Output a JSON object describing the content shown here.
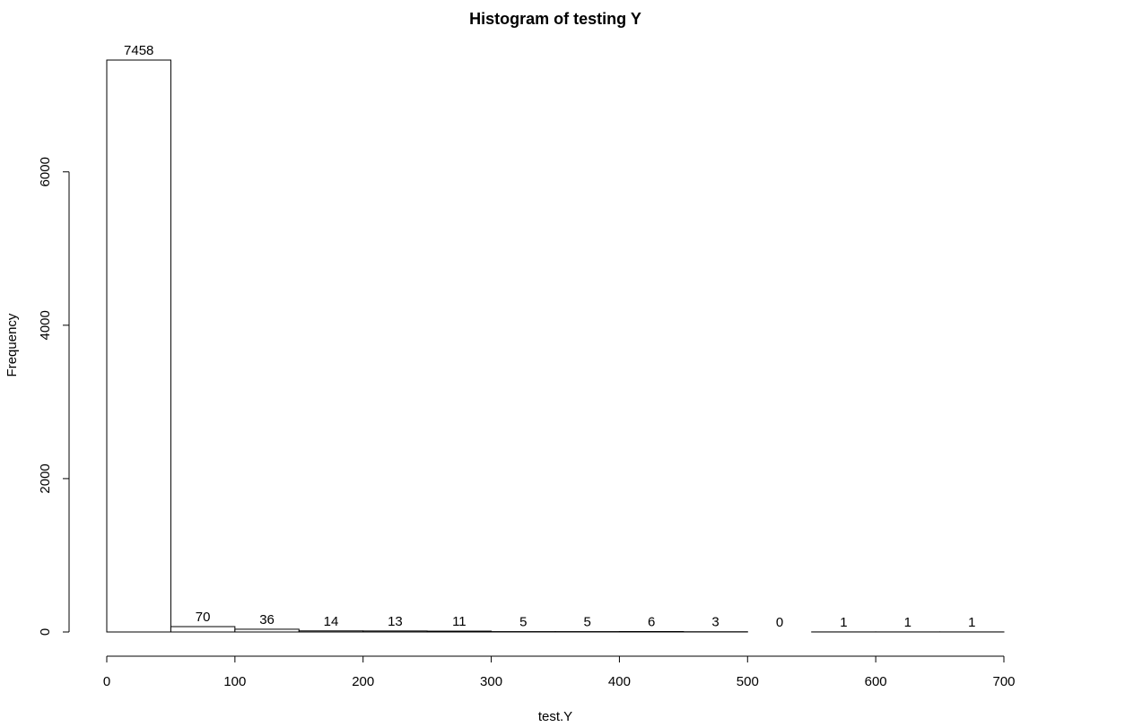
{
  "chart_data": {
    "type": "bar",
    "title": "Histogram of testing Y",
    "xlabel": "test.Y",
    "ylabel": "Frequency",
    "bins": [
      {
        "start": 0,
        "end": 50,
        "count": 7458
      },
      {
        "start": 50,
        "end": 100,
        "count": 70
      },
      {
        "start": 100,
        "end": 150,
        "count": 36
      },
      {
        "start": 150,
        "end": 200,
        "count": 14
      },
      {
        "start": 200,
        "end": 250,
        "count": 13
      },
      {
        "start": 250,
        "end": 300,
        "count": 11
      },
      {
        "start": 300,
        "end": 350,
        "count": 5
      },
      {
        "start": 350,
        "end": 400,
        "count": 5
      },
      {
        "start": 400,
        "end": 450,
        "count": 6
      },
      {
        "start": 450,
        "end": 500,
        "count": 3
      },
      {
        "start": 500,
        "end": 550,
        "count": 0
      },
      {
        "start": 550,
        "end": 600,
        "count": 1
      },
      {
        "start": 600,
        "end": 650,
        "count": 1
      },
      {
        "start": 650,
        "end": 700,
        "count": 1
      }
    ],
    "data_labels": [
      "7458",
      "70",
      "36",
      "14",
      "13",
      "11",
      "5",
      "5",
      "6",
      "3",
      "0",
      "1",
      "1",
      "1"
    ],
    "xlim": [
      0,
      700
    ],
    "ylim": [
      0,
      7458
    ],
    "x_ticks": [
      0,
      100,
      200,
      300,
      400,
      500,
      600,
      700
    ],
    "y_ticks": [
      0,
      2000,
      4000,
      6000
    ],
    "x_tick_labels": [
      "0",
      "100",
      "200",
      "300",
      "400",
      "500",
      "600",
      "700"
    ],
    "y_tick_labels": [
      "0",
      "2000",
      "4000",
      "6000"
    ],
    "grid": false,
    "legend": "none"
  }
}
